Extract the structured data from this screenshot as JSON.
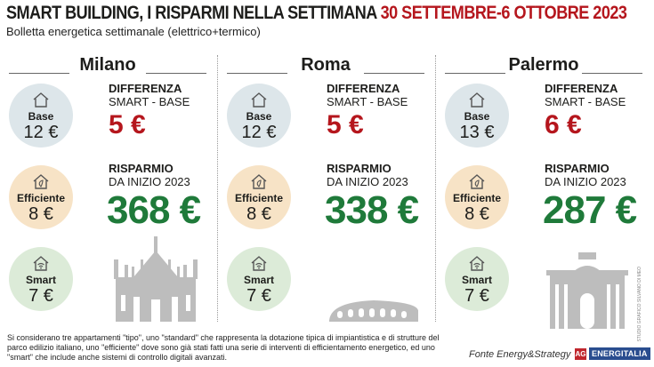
{
  "header": {
    "title_main": "SMART BUILDING, I RISPARMI NELLA SETTIMANA",
    "title_dates": "30 SETTEMBRE-6 OTTOBRE 2023",
    "subtitle": "Bolletta energetica settimanale (elettrico+termico)"
  },
  "labels": {
    "diff_line1": "DIFFERENZA",
    "diff_line2": "SMART - BASE",
    "sav_line1": "RISPARMIO",
    "sav_line2": "DA INIZIO 2023",
    "base": "Base",
    "efficiente": "Efficiente",
    "smart": "Smart"
  },
  "cities": [
    {
      "name": "Milano",
      "base": "12 €",
      "efficiente": "8 €",
      "smart": "7 €",
      "difference": "5 €",
      "savings": "368 €",
      "monument": "duomo"
    },
    {
      "name": "Roma",
      "base": "12 €",
      "efficiente": "8 €",
      "smart": "7 €",
      "difference": "5 €",
      "savings": "338 €",
      "monument": "colosseo"
    },
    {
      "name": "Palermo",
      "base": "13 €",
      "efficiente": "8 €",
      "smart": "7 €",
      "difference": "6 €",
      "savings": "287 €",
      "monument": "politeama"
    }
  ],
  "footer": {
    "note": "Si considerano tre appartamenti \"tipo\", uno \"standard\" che rappresenta la dotazione tipica di impiantistica e di strutture del parco edilizio italiano, uno \"efficiente\" dove sono già stati fatti una serie di interventi di efficientamento energetico, ed uno \"smart\" che include anche sistemi di controllo digitali avanzati.",
    "source": "Fonte Energy&Strategy",
    "logo_text": "ENERGITALIA",
    "logo_mark": "AG",
    "credit": "STUDIO GRAFICO SILVANO DI MEO"
  },
  "colors": {
    "red": "#b5161d",
    "green": "#1f7a3a",
    "base_circle": "#dde6ea",
    "efficiente_circle": "#f7e3c6",
    "smart_circle": "#dcebd8"
  }
}
